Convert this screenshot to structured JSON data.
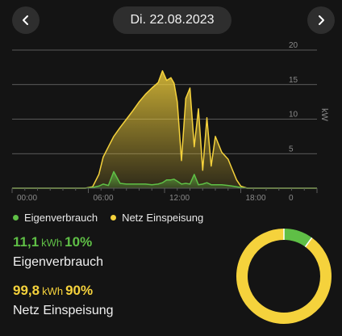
{
  "header": {
    "date": "Di. 22.08.2023"
  },
  "icons": {
    "prev": "chevron-left-icon",
    "next": "chevron-right-icon"
  },
  "colors": {
    "background": "#141414",
    "self_consumption": "#5fbf46",
    "grid_feed": "#f5d23c",
    "grid_lines": "#8a8a8a",
    "axis_text": "#8a8a8a"
  },
  "legend": {
    "self_consumption": "Eigenverbrauch",
    "grid_feed": "Netz Einspeisung"
  },
  "stats": {
    "self_consumption": {
      "value": "11,1",
      "unit": "kWh",
      "percent": "10%",
      "label": "Eigenverbrauch"
    },
    "grid_feed": {
      "value": "99,8",
      "unit": "kWh",
      "percent": "90%",
      "label": "Netz Einspeisung"
    }
  },
  "chart_data": [
    {
      "type": "area",
      "xlabel": "",
      "ylabel": "kW",
      "ylim": [
        0,
        20
      ],
      "xlim": [
        "00:00",
        "24:00"
      ],
      "x_ticks": [
        "00:00",
        "06:00",
        "12:00",
        "18:00"
      ],
      "y_ticks": [
        "0",
        "5",
        "10",
        "15",
        "20"
      ],
      "grid": true,
      "x": [
        "00:00",
        "05:45",
        "06:20",
        "06:50",
        "07:10",
        "07:35",
        "08:00",
        "08:30",
        "09:00",
        "09:30",
        "10:00",
        "10:30",
        "11:00",
        "11:30",
        "11:50",
        "12:10",
        "12:30",
        "12:45",
        "13:00",
        "13:20",
        "13:40",
        "14:00",
        "14:20",
        "14:40",
        "15:00",
        "15:20",
        "15:40",
        "16:00",
        "16:30",
        "17:00",
        "17:20",
        "17:40",
        "18:00",
        "18:30",
        "24:00"
      ],
      "series": [
        {
          "name": "Netz Einspeisung",
          "values": [
            0,
            0,
            0.2,
            2.0,
            4.5,
            6.0,
            7.5,
            8.8,
            10.0,
            11.2,
            12.5,
            13.6,
            14.5,
            15.3,
            17.0,
            15.6,
            16.0,
            15.2,
            12.5,
            4.0,
            13.0,
            14.5,
            6.0,
            11.5,
            2.6,
            10.2,
            3.2,
            7.5,
            5.2,
            4.2,
            2.7,
            1.2,
            0.3,
            0,
            0
          ]
        },
        {
          "name": "Eigenverbrauch",
          "values": [
            0,
            0,
            0.1,
            0.3,
            0.6,
            0.4,
            2.4,
            0.7,
            0.6,
            0.6,
            0.6,
            0.6,
            0.5,
            0.6,
            0.8,
            1.2,
            1.2,
            1.3,
            1.0,
            0.6,
            0.7,
            0.6,
            2.0,
            0.5,
            0.6,
            0.8,
            0.5,
            0.5,
            0.5,
            0.4,
            0.3,
            0.2,
            0.1,
            0,
            0
          ]
        }
      ]
    },
    {
      "type": "pie",
      "categories": [
        "Eigenverbrauch",
        "Netz Einspeisung"
      ],
      "values": [
        10,
        90
      ]
    }
  ]
}
